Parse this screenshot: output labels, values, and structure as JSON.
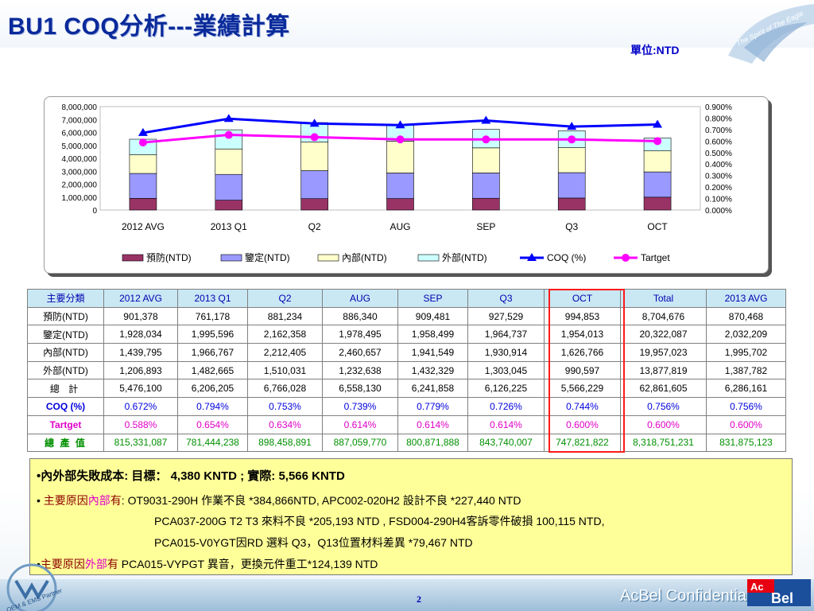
{
  "header": {
    "title": "BU1  COQ分析---業績計算",
    "unit": "單位:NTD",
    "eagle_logo_text": "The Spirit of The Eagle"
  },
  "chart_data": {
    "type": "bar",
    "stacked": true,
    "categories": [
      "2012 AVG",
      "2013 Q1",
      "Q2",
      "AUG",
      "SEP",
      "Q3",
      "OCT"
    ],
    "series": [
      {
        "name": "預防(NTD)",
        "type": "bar",
        "axis": "left",
        "color": "#993366",
        "values": [
          901378,
          761178,
          881234,
          886340,
          909481,
          927529,
          994853
        ]
      },
      {
        "name": "鑒定(NTD)",
        "type": "bar",
        "axis": "left",
        "color": "#9999ff",
        "values": [
          1928034,
          1995596,
          2162358,
          1978495,
          1958499,
          1964737,
          1954013
        ]
      },
      {
        "name": "內部(NTD)",
        "type": "bar",
        "axis": "left",
        "color": "#ffffcc",
        "values": [
          1439795,
          1966767,
          2212405,
          2460657,
          1941549,
          1930914,
          1626766
        ]
      },
      {
        "name": "外部(NTD)",
        "type": "bar",
        "axis": "left",
        "color": "#ccffff",
        "values": [
          1206893,
          1482665,
          1510031,
          1232638,
          1432329,
          1303045,
          990597
        ]
      },
      {
        "name": "COQ (%)",
        "type": "line",
        "axis": "right",
        "color": "#0000ff",
        "values": [
          0.672,
          0.794,
          0.753,
          0.739,
          0.779,
          0.726,
          0.744
        ]
      },
      {
        "name": "Tartget",
        "type": "line",
        "axis": "right",
        "color": "#ff00ff",
        "values": [
          0.588,
          0.654,
          0.634,
          0.614,
          0.614,
          0.614,
          0.6
        ]
      }
    ],
    "left_axis": {
      "min": 0,
      "max": 8000000,
      "ticks": [
        "8,000,000",
        "7,000,000",
        "6,000,000",
        "5,000,000",
        "4,000,000",
        "3,000,000",
        "2,000,000",
        "1,000,000",
        "0"
      ]
    },
    "right_axis": {
      "min": 0,
      "max": 0.9,
      "ticks": [
        "0.900%",
        "0.800%",
        "0.700%",
        "0.600%",
        "0.500%",
        "0.400%",
        "0.300%",
        "0.200%",
        "0.100%",
        "0.000%"
      ]
    },
    "grid": false,
    "legend_position": "bottom"
  },
  "table": {
    "headers": [
      "主要分類",
      "2012 AVG",
      "2013 Q1",
      "Q2",
      "AUG",
      "SEP",
      "Q3",
      "OCT",
      "Total",
      "2013 AVG"
    ],
    "rows": [
      {
        "label": "預防(NTD)",
        "cls": "row-plain",
        "values": [
          "901,378",
          "761,178",
          "881,234",
          "886,340",
          "909,481",
          "927,529",
          "994,853",
          "8,704,676",
          "870,468"
        ]
      },
      {
        "label": "鑒定(NTD)",
        "cls": "row-plain",
        "values": [
          "1,928,034",
          "1,995,596",
          "2,162,358",
          "1,978,495",
          "1,958,499",
          "1,964,737",
          "1,954,013",
          "20,322,087",
          "2,032,209"
        ]
      },
      {
        "label": "內部(NTD)",
        "cls": "row-plain",
        "values": [
          "1,439,795",
          "1,966,767",
          "2,212,405",
          "2,460,657",
          "1,941,549",
          "1,930,914",
          "1,626,766",
          "19,957,023",
          "1,995,702"
        ]
      },
      {
        "label": "外部(NTD)",
        "cls": "row-plain",
        "values": [
          "1,206,893",
          "1,482,665",
          "1,510,031",
          "1,232,638",
          "1,432,329",
          "1,303,045",
          "990,597",
          "13,877,819",
          "1,387,782"
        ]
      },
      {
        "label": "總 計",
        "cls": "row-total",
        "values": [
          "5,476,100",
          "6,206,205",
          "6,766,028",
          "6,558,130",
          "6,241,858",
          "6,126,225",
          "5,566,229",
          "62,861,605",
          "6,286,161"
        ]
      },
      {
        "label": "COQ (%)",
        "cls": "row-coq",
        "values": [
          "0.672%",
          "0.794%",
          "0.753%",
          "0.739%",
          "0.779%",
          "0.726%",
          "0.744%",
          "0.756%",
          "0.756%"
        ]
      },
      {
        "label": "Tartget",
        "cls": "row-target",
        "values": [
          "0.588%",
          "0.654%",
          "0.634%",
          "0.614%",
          "0.614%",
          "0.614%",
          "0.600%",
          "0.600%",
          "0.600%"
        ]
      },
      {
        "label": "總 產 值",
        "cls": "row-value",
        "values": [
          "815,331,087",
          "781,444,238",
          "898,458,891",
          "887,059,770",
          "800,871,888",
          "843,740,007",
          "747,821,822",
          "8,318,751,231",
          "831,875,123"
        ]
      }
    ]
  },
  "notes": {
    "line1": "•內外部失敗成本: 目標： 4,380  KNTD  ; 實際: 5,566  KNTD",
    "line2_bullet": "• ",
    "line2_prefix": "主要原因",
    "line2_highlight": "內部",
    "line2_suffix": "有",
    "line2_text": ": OT9031-290H 作業不良 *384,866NTD,  APC002-020H2 設計不良 *227,440 NTD",
    "line3_text": "PCA037-200G T2 T3 來料不良 *205,193 NTD , FSD004-290H4客訴零件破損 100,115 NTD,",
    "line4_text": "PCA015-V0YGT因RD 選料 Q3，Q13位置材料差異 *79,467 NTD",
    "line5_bullet": "•",
    "line5_prefix": "主要原因",
    "line5_highlight": "外部",
    "line5_suffix": "有",
    "line5_text": "  PCA015-VYPGT 異音，更換元件重工*124,139 NTD"
  },
  "footer": {
    "page_number": "2",
    "confidential": "AcBel Confidential",
    "logo_ac": "Ac",
    "logo_bel": "Bel",
    "partner_text": "OEM & EMS Partner"
  }
}
